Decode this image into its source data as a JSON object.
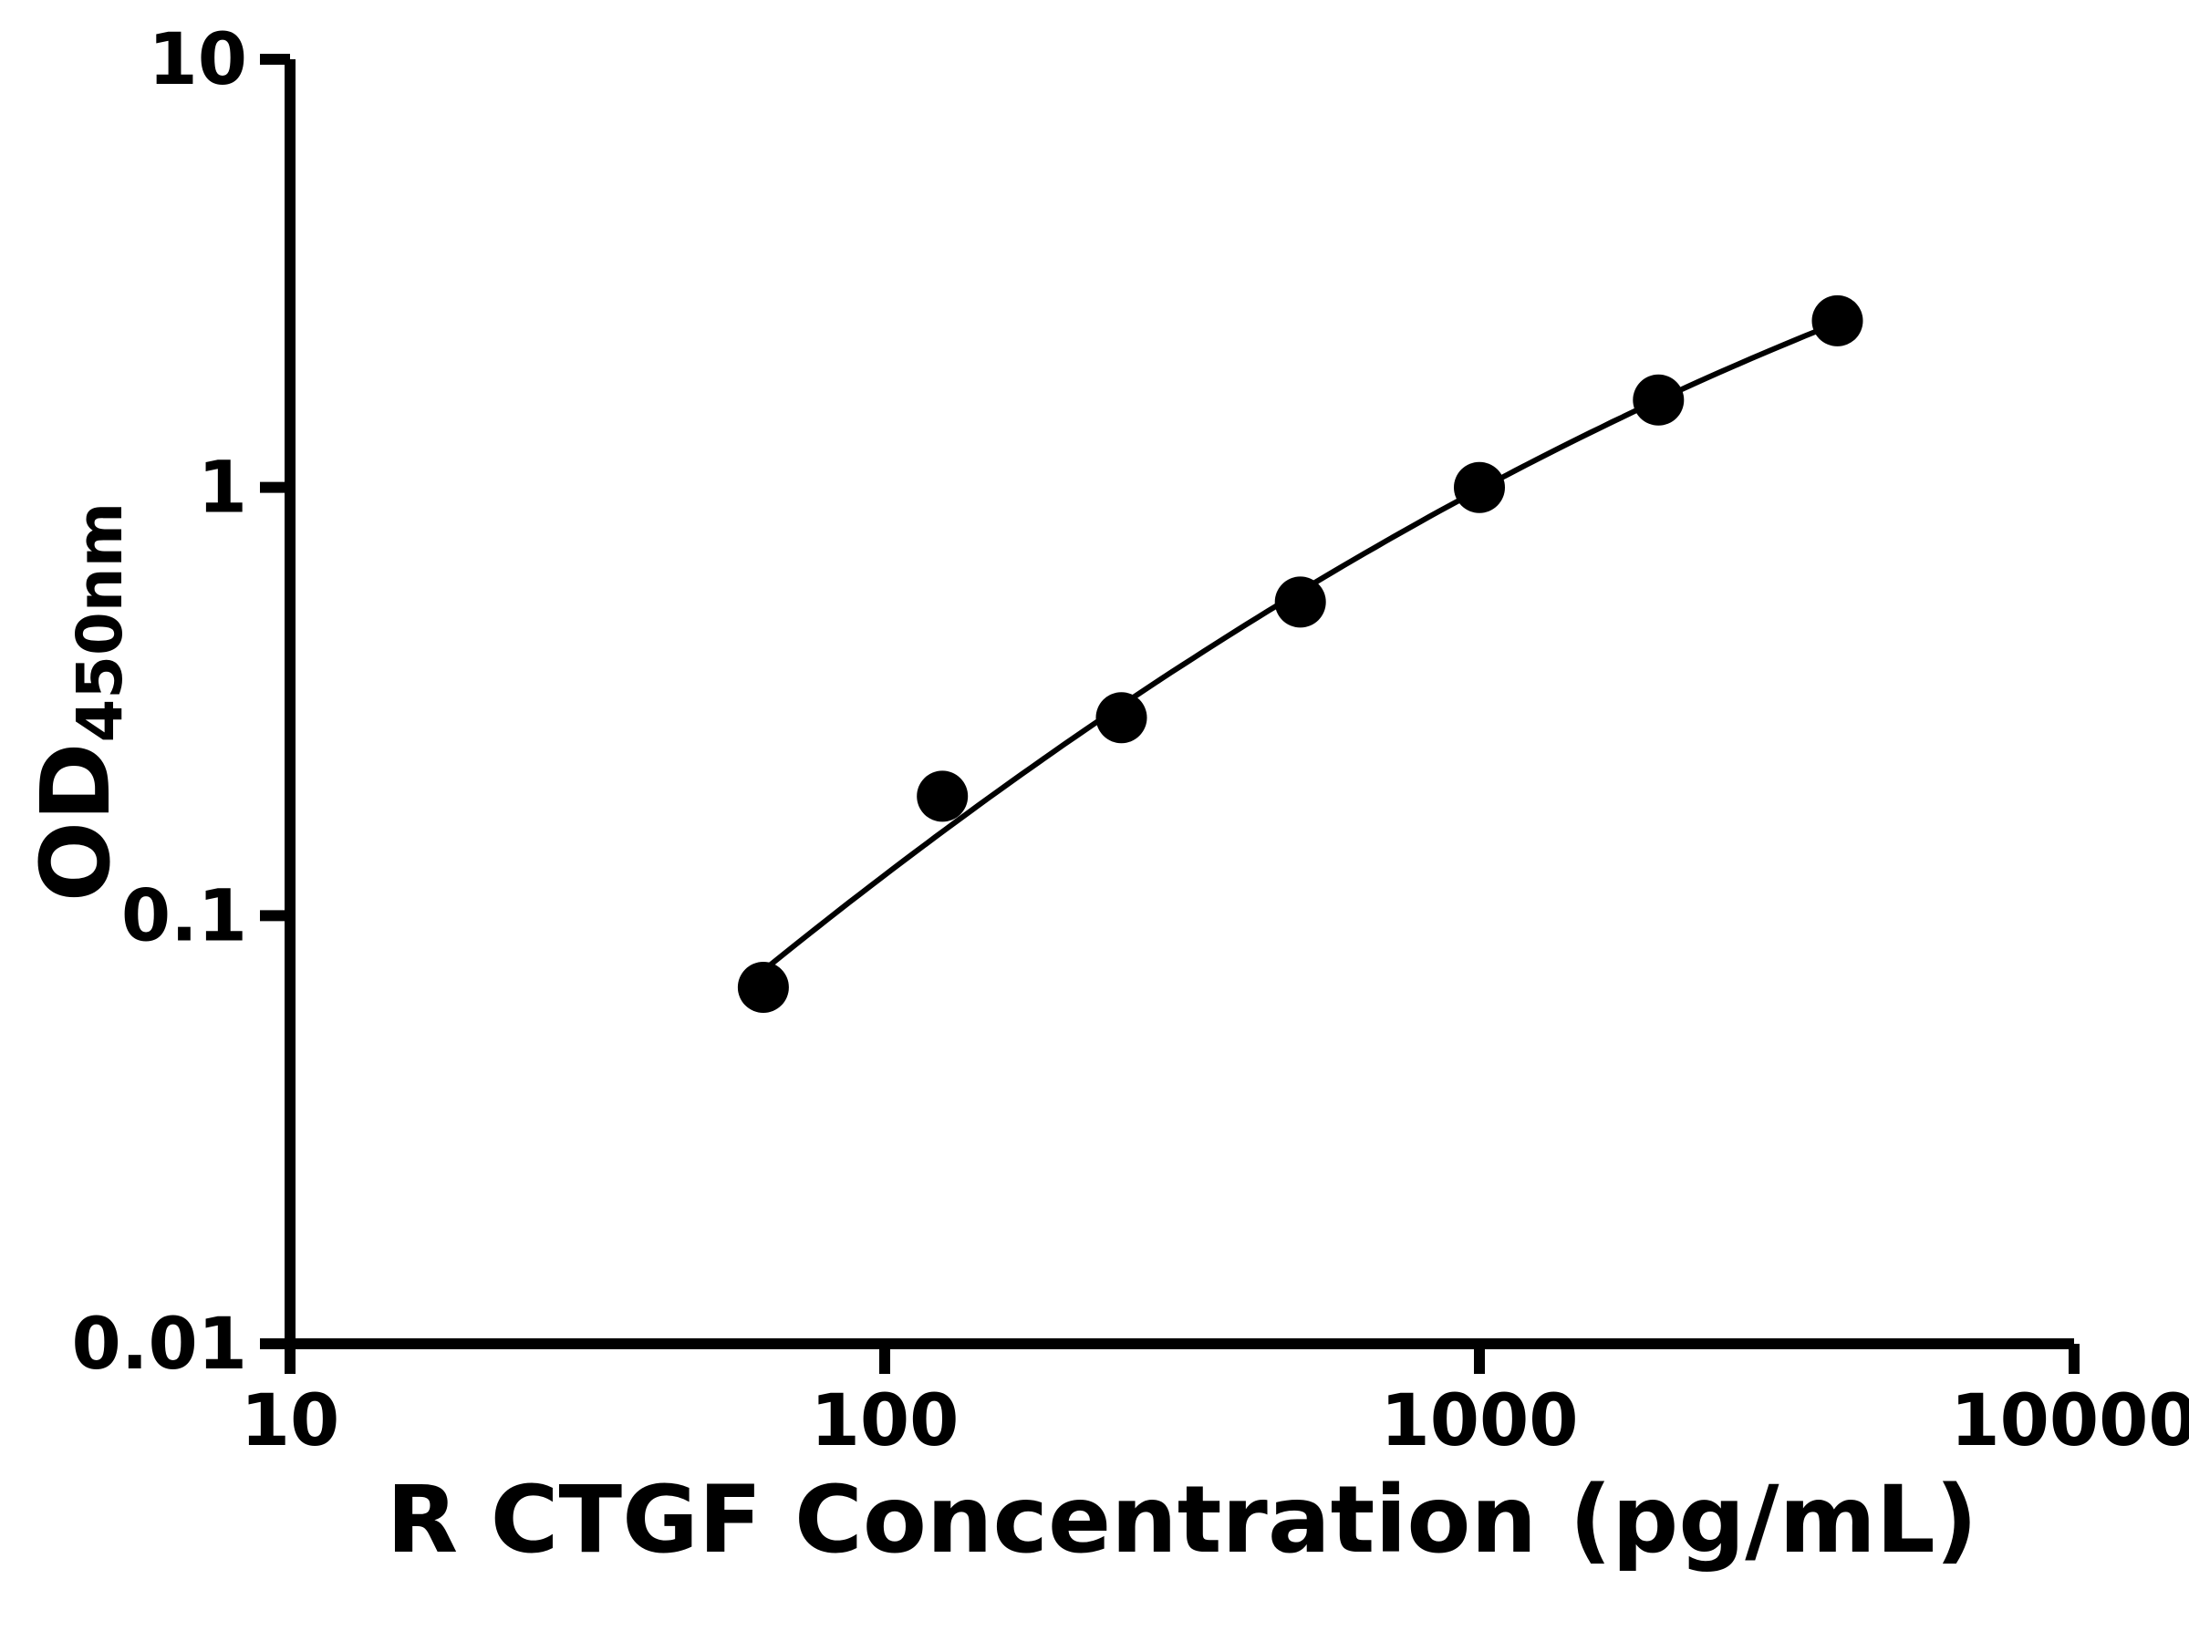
{
  "chart_data": {
    "type": "scatter",
    "title": "",
    "xlabel": "R CTGF Concentration (pg/mL)",
    "ylabel": "OD450nm",
    "ylabel_base": "OD",
    "ylabel_sub": "450nm",
    "xscale": "log",
    "yscale": "log",
    "xlim": [
      10,
      10000
    ],
    "ylim": [
      0.01,
      10
    ],
    "x_ticks": [
      10,
      100,
      1000,
      10000
    ],
    "x_tick_labels": [
      "10",
      "100",
      "1000",
      "10000"
    ],
    "y_ticks": [
      0.01,
      0.1,
      1,
      10
    ],
    "y_tick_labels": [
      "0.01",
      "0.1",
      "1",
      "10"
    ],
    "x": [
      62.5,
      125,
      250,
      500,
      1000,
      2000,
      4000
    ],
    "y": [
      0.068,
      0.19,
      0.29,
      0.54,
      1.0,
      1.6,
      2.45
    ],
    "fit_line": true,
    "grid": false,
    "legend": "none",
    "marker": "circle",
    "marker_color": "#000000",
    "line_color": "#000000",
    "axis_color": "#000000",
    "background_color": "#ffffff"
  }
}
